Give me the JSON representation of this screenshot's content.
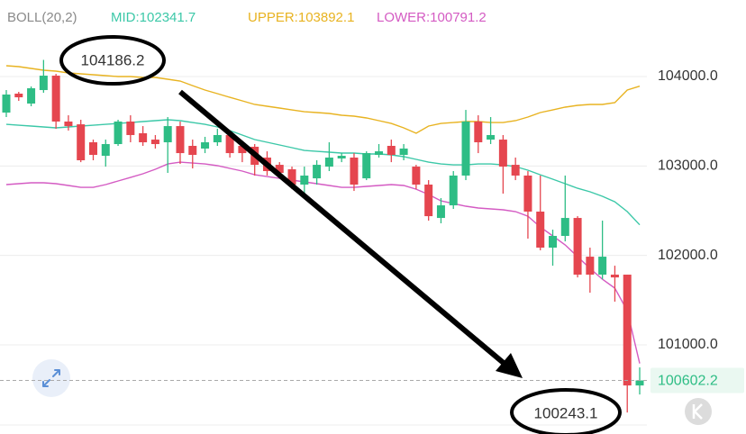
{
  "chart_data": {
    "type": "candlestick",
    "indicator": "BOLL(20,2)",
    "up_color": "#2ebd85",
    "down_color": "#e5464f",
    "grid": true,
    "ylim": [
      100124,
      104856
    ],
    "yticks": [
      {
        "value": 104000,
        "label": "104000.0"
      },
      {
        "value": 103000,
        "label": "103000.0"
      },
      {
        "value": 102000,
        "label": "102000.0"
      },
      {
        "value": 101000,
        "label": "101000.0"
      }
    ],
    "current_price": 100602.2,
    "high_annotation": 104186.2,
    "low_annotation": 100243.1,
    "open": [
      103597,
      103809,
      103698,
      103849,
      104010,
      103497,
      103466,
      103265,
      103114,
      103245,
      103497,
      103366,
      103295,
      103265,
      103446,
      103225,
      103195,
      103265,
      103346,
      103225,
      103215,
      103094,
      103013,
      102963,
      102792,
      102862,
      102993,
      103084,
      103094,
      102862,
      103124,
      103225,
      103124,
      102993,
      102792,
      102419,
      102560,
      102893,
      103497,
      103295,
      103295,
      103013,
      102893,
      102490,
      102087,
      102218,
      102419,
      101986,
      101785,
      101785,
      101785,
      100546
    ],
    "high": [
      103849,
      103829,
      103889,
      104186.2,
      104030,
      103567,
      103517,
      103295,
      103295,
      103517,
      103567,
      103446,
      103346,
      103547,
      103497,
      103295,
      103326,
      103416,
      103396,
      103265,
      103245,
      103164,
      103043,
      102993,
      102993,
      103064,
      103265,
      103144,
      103144,
      103164,
      103245,
      103295,
      103245,
      103013,
      102842,
      102641,
      102943,
      103627,
      103567,
      103547,
      103346,
      103094,
      102943,
      102893,
      102288,
      102893,
      102439,
      102087,
      102389,
      101885,
      101785,
      100748
    ],
    "low": [
      103547,
      103728,
      103668,
      103819,
      103416,
      103396,
      103043,
      103064,
      102993,
      103225,
      103265,
      103225,
      103195,
      102923,
      103023,
      102973,
      103144,
      103225,
      103094,
      103043,
      102893,
      102893,
      102893,
      102741,
      102661,
      102792,
      102943,
      103043,
      102721,
      102842,
      103094,
      103043,
      103064,
      102741,
      102389,
      102359,
      102520,
      102842,
      103144,
      103245,
      102691,
      102842,
      102188,
      102057,
      101885,
      102157,
      101754,
      101583,
      101734,
      101483,
      100243.1,
      100445
    ],
    "close": [
      103799,
      103768,
      103869,
      104010,
      103497,
      103446,
      103064,
      103124,
      103245,
      103497,
      103346,
      103265,
      103245,
      103446,
      103144,
      103124,
      103265,
      103346,
      103144,
      103144,
      103013,
      102943,
      102923,
      102792,
      102893,
      103013,
      103094,
      103114,
      102792,
      103144,
      103164,
      103124,
      103195,
      102792,
      102439,
      102560,
      102893,
      103497,
      103265,
      103346,
      102993,
      102893,
      102490,
      102087,
      102218,
      102419,
      101785,
      101785,
      101986,
      101754,
      100546,
      100602.2
    ],
    "bands": [
      {
        "label": "MID:102341.7",
        "color": "#3cc8a8",
        "values": [
          103466,
          103456,
          103446,
          103436,
          103426,
          103436,
          103446,
          103456,
          103466,
          103476,
          103486,
          103497,
          103507,
          103517,
          103507,
          103486,
          103466,
          103436,
          103396,
          103346,
          103295,
          103265,
          103235,
          103205,
          103174,
          103164,
          103154,
          103144,
          103144,
          103134,
          103134,
          103124,
          103104,
          103074,
          103043,
          103023,
          103013,
          103013,
          103023,
          103023,
          103013,
          102993,
          102953,
          102902,
          102852,
          102802,
          102751,
          102711,
          102661,
          102600,
          102490,
          102341.7
        ]
      },
      {
        "label": "UPPER:103892.1",
        "color": "#e8b321",
        "values": [
          104121,
          104111,
          104091,
          104071,
          104061,
          104040,
          104030,
          104020,
          104010,
          104000,
          104000,
          103990,
          103990,
          103970,
          103950,
          103899,
          103849,
          103809,
          103768,
          103728,
          103688,
          103668,
          103648,
          103627,
          103607,
          103597,
          103587,
          103567,
          103557,
          103537,
          103507,
          103476,
          103426,
          103366,
          103446,
          103476,
          103486,
          103497,
          103497,
          103486,
          103486,
          103507,
          103547,
          103597,
          103627,
          103658,
          103678,
          103688,
          103688,
          103708,
          103849,
          103892.1
        ]
      },
      {
        "label": "LOWER:100791.2",
        "color": "#d45bc3",
        "values": [
          102792,
          102802,
          102812,
          102812,
          102802,
          102782,
          102761,
          102761,
          102792,
          102832,
          102872,
          102913,
          102963,
          103023,
          103043,
          103033,
          103023,
          103003,
          102973,
          102943,
          102902,
          102882,
          102862,
          102842,
          102822,
          102802,
          102782,
          102761,
          102761,
          102772,
          102782,
          102792,
          102782,
          102741,
          102681,
          102610,
          102580,
          102550,
          102530,
          102520,
          102510,
          102490,
          102439,
          102318,
          102218,
          102117,
          101986,
          101855,
          101734,
          101634,
          101382,
          100791.2
        ]
      }
    ]
  }
}
